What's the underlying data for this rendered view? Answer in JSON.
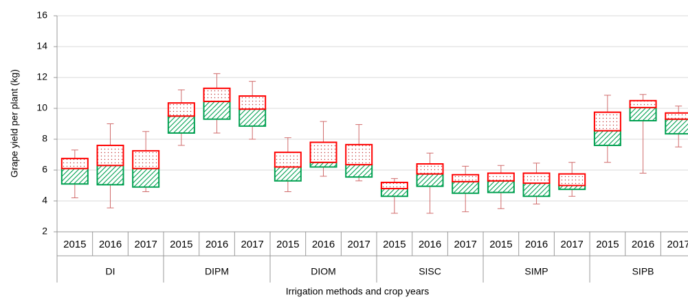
{
  "chart_data": {
    "type": "box",
    "y_label": "Grape yield per plant (kg)",
    "x_label": "Irrigation methods and crop years",
    "groups": [
      {
        "name": "DI",
        "categories": [
          "2015",
          "2016",
          "2017"
        ]
      },
      {
        "name": "DIPM",
        "categories": [
          "2015",
          "2016",
          "2017"
        ]
      },
      {
        "name": "DIOM",
        "categories": [
          "2015",
          "2016",
          "2017"
        ]
      },
      {
        "name": "SISC",
        "categories": [
          "2015",
          "2016",
          "2017"
        ]
      },
      {
        "name": "SIMP",
        "categories": [
          "2015",
          "2016",
          "2017"
        ]
      },
      {
        "name": "SIPB",
        "categories": [
          "2015",
          "2016",
          "2017"
        ]
      }
    ],
    "min": [
      4.2,
      3.55,
      4.6,
      7.6,
      8.4,
      8.0,
      4.6,
      5.6,
      5.3,
      3.2,
      3.2,
      3.3,
      3.5,
      3.8,
      4.3,
      6.5,
      5.8,
      7.5
    ],
    "q1": [
      5.1,
      5.05,
      4.9,
      8.4,
      9.3,
      8.85,
      5.3,
      6.2,
      5.55,
      4.3,
      4.95,
      4.5,
      4.55,
      4.3,
      4.75,
      7.6,
      9.2,
      8.35
    ],
    "median": [
      6.1,
      6.3,
      6.1,
      9.5,
      10.45,
      9.95,
      6.2,
      6.5,
      6.35,
      4.8,
      5.75,
      5.25,
      5.3,
      5.15,
      5.0,
      8.55,
      10.05,
      9.3
    ],
    "q3": [
      6.75,
      7.6,
      7.25,
      10.35,
      11.3,
      10.8,
      7.15,
      7.8,
      7.65,
      5.2,
      6.4,
      5.7,
      5.8,
      5.8,
      5.75,
      9.75,
      10.5,
      9.7
    ],
    "max": [
      7.3,
      9.0,
      8.5,
      11.2,
      12.25,
      11.75,
      8.1,
      9.15,
      8.95,
      5.45,
      7.1,
      6.25,
      6.3,
      6.45,
      6.5,
      10.85,
      10.9,
      10.15
    ],
    "upper_color": "#ff0000",
    "lower_color": "#00a050",
    "whisker_color": "#d06a6a",
    "ylim": [
      2,
      16
    ],
    "yticks": [
      2,
      4,
      6,
      8,
      10,
      12,
      14,
      16
    ],
    "grid": true
  }
}
